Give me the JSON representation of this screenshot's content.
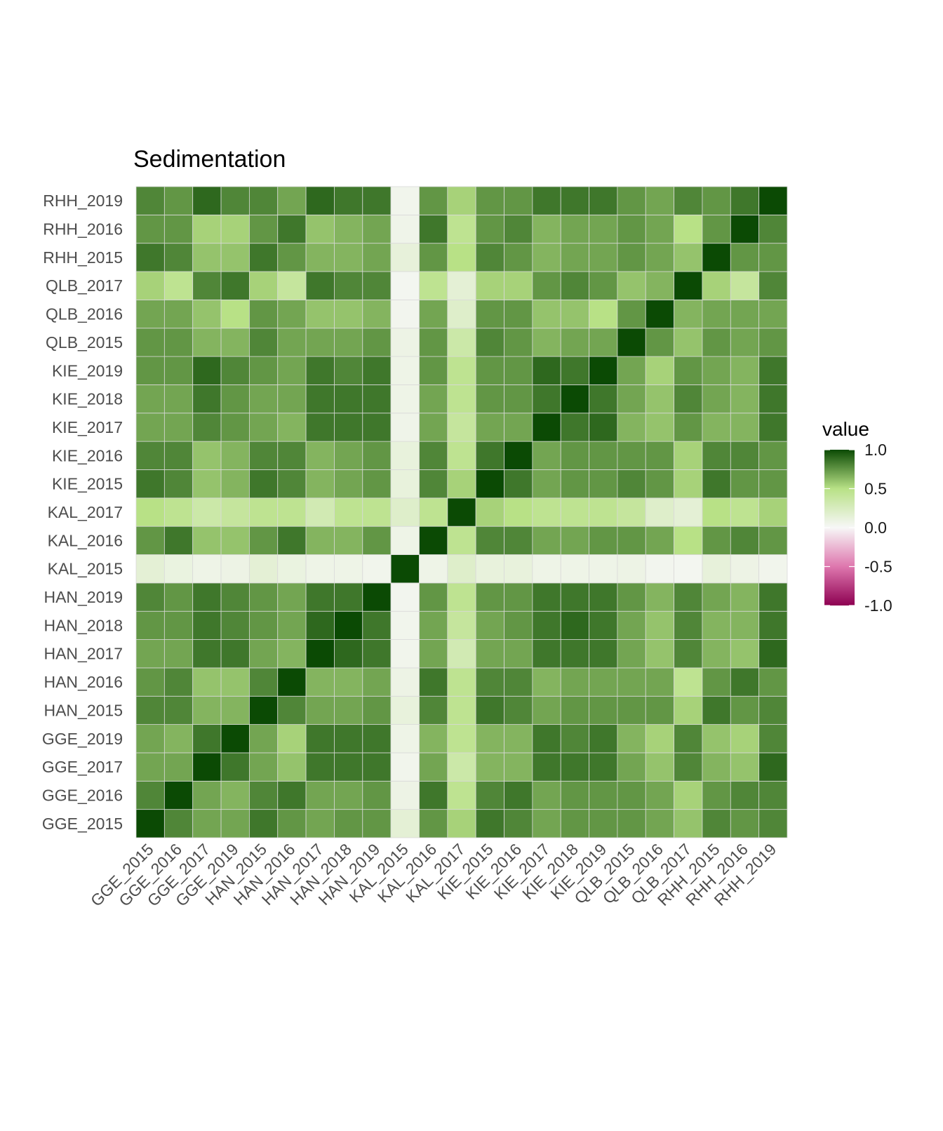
{
  "chart_data": {
    "type": "heatmap",
    "title": "Sedimentation",
    "xlabel": "",
    "ylabel": "",
    "labels": [
      "GGE_2015",
      "GGE_2016",
      "GGE_2017",
      "GGE_2019",
      "HAN_2015",
      "HAN_2016",
      "HAN_2017",
      "HAN_2018",
      "HAN_2019",
      "KAL_2015",
      "KAL_2016",
      "KAL_2017",
      "KIE_2015",
      "KIE_2016",
      "KIE_2017",
      "KIE_2018",
      "KIE_2019",
      "QLB_2015",
      "QLB_2016",
      "QLB_2017",
      "RHH_2015",
      "RHH_2016",
      "RHH_2019"
    ],
    "values": [
      [
        1.0,
        0.8,
        0.7,
        0.7,
        0.8,
        0.75,
        0.7,
        0.75,
        0.8,
        0.15,
        0.75,
        0.5,
        0.85,
        0.8,
        0.7,
        0.7,
        0.75,
        0.75,
        0.7,
        0.55,
        0.85,
        0.75,
        0.8
      ],
      [
        0.8,
        1.0,
        0.7,
        0.65,
        0.8,
        0.8,
        0.7,
        0.75,
        0.75,
        0.1,
        0.85,
        0.45,
        0.8,
        0.8,
        0.7,
        0.7,
        0.75,
        0.75,
        0.7,
        0.45,
        0.8,
        0.75,
        0.75
      ],
      [
        0.7,
        0.7,
        1.0,
        0.85,
        0.65,
        0.6,
        0.85,
        0.85,
        0.85,
        0.07,
        0.6,
        0.35,
        0.6,
        0.6,
        0.8,
        0.85,
        0.9,
        0.65,
        0.6,
        0.8,
        0.6,
        0.55,
        0.9
      ],
      [
        0.7,
        0.65,
        0.85,
        1.0,
        0.65,
        0.6,
        0.85,
        0.8,
        0.8,
        0.08,
        0.6,
        0.4,
        0.65,
        0.65,
        0.75,
        0.75,
        0.8,
        0.65,
        0.5,
        0.85,
        0.6,
        0.55,
        0.8
      ],
      [
        0.85,
        0.8,
        0.7,
        0.7,
        1.0,
        0.8,
        0.7,
        0.75,
        0.75,
        0.15,
        0.75,
        0.45,
        0.85,
        0.8,
        0.7,
        0.7,
        0.75,
        0.8,
        0.75,
        0.55,
        0.85,
        0.75,
        0.8
      ],
      [
        0.75,
        0.85,
        0.6,
        0.55,
        0.8,
        1.0,
        0.65,
        0.7,
        0.7,
        0.1,
        0.85,
        0.45,
        0.8,
        0.8,
        0.65,
        0.7,
        0.7,
        0.7,
        0.7,
        0.4,
        0.75,
        0.85,
        0.7
      ],
      [
        0.7,
        0.7,
        0.85,
        0.85,
        0.7,
        0.65,
        1.0,
        0.9,
        0.85,
        0.07,
        0.65,
        0.3,
        0.65,
        0.65,
        0.85,
        0.85,
        0.85,
        0.7,
        0.6,
        0.85,
        0.65,
        0.6,
        0.9
      ],
      [
        0.75,
        0.7,
        0.85,
        0.85,
        0.7,
        0.65,
        0.9,
        1.0,
        0.85,
        0.07,
        0.65,
        0.45,
        0.7,
        0.7,
        0.85,
        0.85,
        0.8,
        0.7,
        0.6,
        0.8,
        0.65,
        0.65,
        0.85
      ],
      [
        0.75,
        0.75,
        0.85,
        0.85,
        0.75,
        0.7,
        0.85,
        0.85,
        1.0,
        0.05,
        0.75,
        0.45,
        0.75,
        0.75,
        0.85,
        0.85,
        0.85,
        0.75,
        0.65,
        0.8,
        0.7,
        0.7,
        0.85
      ],
      [
        0.15,
        0.08,
        0.05,
        0.07,
        0.12,
        0.08,
        0.05,
        0.05,
        0.04,
        1.0,
        0.07,
        0.2,
        0.12,
        0.12,
        0.06,
        0.07,
        0.07,
        0.08,
        0.04,
        0.03,
        0.13,
        0.06,
        0.05
      ],
      [
        0.75,
        0.85,
        0.7,
        0.65,
        0.8,
        0.85,
        0.7,
        0.7,
        0.75,
        0.07,
        1.0,
        0.45,
        0.8,
        0.8,
        0.7,
        0.7,
        0.75,
        0.75,
        0.7,
        0.45,
        0.75,
        0.85,
        0.75
      ],
      [
        0.55,
        0.45,
        0.35,
        0.45,
        0.45,
        0.45,
        0.3,
        0.4,
        0.45,
        0.2,
        0.45,
        1.0,
        0.55,
        0.45,
        0.4,
        0.45,
        0.45,
        0.35,
        0.2,
        0.15,
        0.5,
        0.45,
        0.55
      ],
      [
        0.85,
        0.8,
        0.65,
        0.65,
        0.85,
        0.8,
        0.7,
        0.7,
        0.75,
        0.12,
        0.8,
        0.55,
        1.0,
        0.85,
        0.7,
        0.75,
        0.75,
        0.8,
        0.75,
        0.55,
        0.8,
        0.75,
        0.75
      ],
      [
        0.8,
        0.85,
        0.65,
        0.65,
        0.8,
        0.8,
        0.7,
        0.75,
        0.75,
        0.12,
        0.8,
        0.5,
        0.85,
        1.0,
        0.7,
        0.75,
        0.75,
        0.75,
        0.75,
        0.55,
        0.75,
        0.8,
        0.75
      ],
      [
        0.7,
        0.7,
        0.85,
        0.85,
        0.7,
        0.65,
        0.85,
        0.85,
        0.85,
        0.07,
        0.7,
        0.45,
        0.7,
        0.7,
        1.0,
        0.85,
        0.9,
        0.65,
        0.6,
        0.75,
        0.65,
        0.65,
        0.85
      ],
      [
        0.75,
        0.75,
        0.85,
        0.8,
        0.75,
        0.7,
        0.85,
        0.9,
        0.85,
        0.07,
        0.7,
        0.45,
        0.75,
        0.75,
        0.85,
        1.0,
        0.85,
        0.7,
        0.6,
        0.8,
        0.7,
        0.7,
        0.85
      ],
      [
        0.75,
        0.75,
        0.85,
        0.85,
        0.75,
        0.7,
        0.85,
        0.85,
        0.85,
        0.07,
        0.75,
        0.45,
        0.75,
        0.75,
        0.9,
        0.85,
        1.0,
        0.7,
        0.5,
        0.75,
        0.7,
        0.7,
        0.85
      ],
      [
        0.75,
        0.75,
        0.7,
        0.65,
        0.75,
        0.7,
        0.7,
        0.7,
        0.75,
        0.08,
        0.75,
        0.4,
        0.8,
        0.75,
        0.65,
        0.7,
        0.7,
        1.0,
        0.75,
        0.6,
        0.75,
        0.75,
        0.75
      ],
      [
        0.7,
        0.7,
        0.6,
        0.55,
        0.75,
        0.7,
        0.6,
        0.6,
        0.65,
        0.04,
        0.7,
        0.2,
        0.75,
        0.75,
        0.6,
        0.6,
        0.55,
        0.75,
        1.0,
        0.65,
        0.7,
        0.7,
        0.7
      ],
      [
        0.6,
        0.55,
        0.8,
        0.8,
        0.55,
        0.45,
        0.8,
        0.8,
        0.8,
        0.03,
        0.5,
        0.15,
        0.55,
        0.55,
        0.75,
        0.8,
        0.75,
        0.6,
        0.65,
        1.0,
        0.6,
        0.5,
        0.8
      ],
      [
        0.8,
        0.75,
        0.65,
        0.6,
        0.85,
        0.75,
        0.65,
        0.65,
        0.7,
        0.13,
        0.75,
        0.5,
        0.85,
        0.8,
        0.65,
        0.7,
        0.7,
        0.75,
        0.7,
        0.55,
        1.0,
        0.75,
        0.75
      ],
      [
        0.75,
        0.8,
        0.6,
        0.55,
        0.75,
        0.85,
        0.6,
        0.65,
        0.65,
        0.08,
        0.8,
        0.45,
        0.75,
        0.8,
        0.65,
        0.65,
        0.65,
        0.7,
        0.7,
        0.4,
        0.75,
        1.0,
        0.85
      ],
      [
        0.8,
        0.8,
        0.9,
        0.8,
        0.8,
        0.75,
        0.9,
        0.85,
        0.85,
        0.05,
        0.75,
        0.55,
        0.75,
        0.75,
        0.85,
        0.85,
        0.85,
        0.75,
        0.7,
        0.8,
        0.75,
        0.8,
        1.0
      ]
    ],
    "legend": {
      "title": "value",
      "ticks": [
        "1.0",
        "0.5",
        "0.0",
        "-0.5",
        "-1.0"
      ],
      "range": [
        -1.0,
        1.0
      ],
      "placement": "right"
    },
    "colors": {
      "low": "#8e0152",
      "mid_low": "#de77ae",
      "mid": "#f7f7f7",
      "mid_high": "#b8e186",
      "high": "#0b4a04"
    },
    "grid": true
  }
}
